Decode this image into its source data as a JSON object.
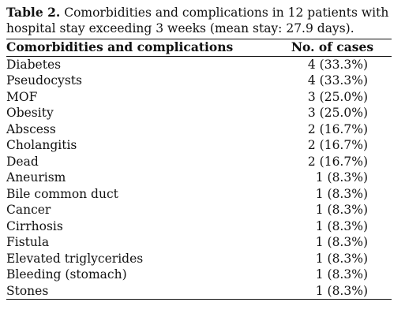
{
  "caption": {
    "label": "Table 2.",
    "text": "Comorbidities and complications in 12 patients with hospital stay exceeding 3 weeks (mean stay: 27.9 days)."
  },
  "table": {
    "headers": [
      "Comorbidities and complications",
      "No. of cases"
    ],
    "rows": [
      [
        "Diabetes",
        "4 (33.3%)"
      ],
      [
        "Pseudocysts",
        "4 (33.3%)"
      ],
      [
        "MOF",
        "3 (25.0%)"
      ],
      [
        "Obesity",
        "3 (25.0%)"
      ],
      [
        "Abscess",
        "2 (16.7%)"
      ],
      [
        "Cholangitis",
        "2 (16.7%)"
      ],
      [
        "Dead",
        "2 (16.7%)"
      ],
      [
        "Aneurism",
        "1 (8.3%)"
      ],
      [
        "Bile common duct",
        "1 (8.3%)"
      ],
      [
        "Cancer",
        "1 (8.3%)"
      ],
      [
        "Cirrhosis",
        "1 (8.3%)"
      ],
      [
        "Fistula",
        "1 (8.3%)"
      ],
      [
        "Elevated triglycerides",
        "1 (8.3%)"
      ],
      [
        "Bleeding (stomach)",
        "1 (8.3%)"
      ],
      [
        "Stones",
        "1 (8.3%)"
      ]
    ]
  }
}
